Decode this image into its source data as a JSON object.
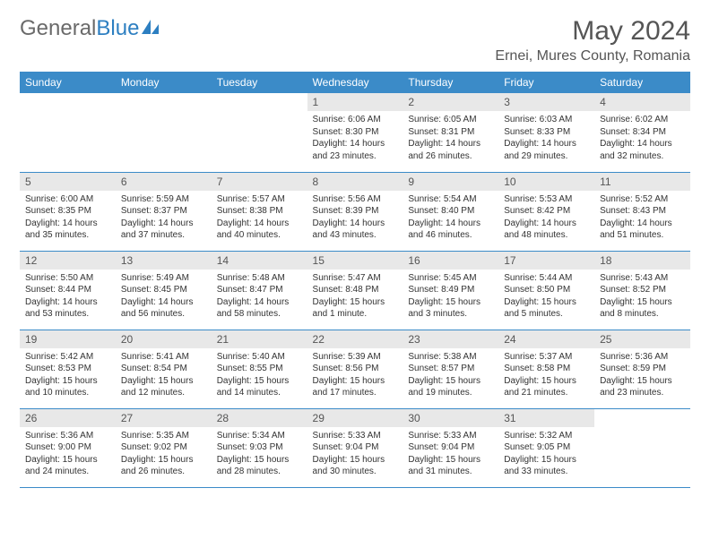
{
  "logo": {
    "text_gray": "General",
    "text_blue": "Blue"
  },
  "title": "May 2024",
  "location": "Ernei, Mures County, Romania",
  "headers": [
    "Sunday",
    "Monday",
    "Tuesday",
    "Wednesday",
    "Thursday",
    "Friday",
    "Saturday"
  ],
  "colors": {
    "header_bg": "#3b8bc8",
    "daynum_bg": "#e8e8e8",
    "logo_gray": "#6a6a6a",
    "logo_blue": "#2d7fc1"
  },
  "weeks": [
    [
      {
        "n": "",
        "sr": "",
        "ss": "",
        "d1": "",
        "d2": ""
      },
      {
        "n": "",
        "sr": "",
        "ss": "",
        "d1": "",
        "d2": ""
      },
      {
        "n": "",
        "sr": "",
        "ss": "",
        "d1": "",
        "d2": ""
      },
      {
        "n": "1",
        "sr": "Sunrise: 6:06 AM",
        "ss": "Sunset: 8:30 PM",
        "d1": "Daylight: 14 hours",
        "d2": "and 23 minutes."
      },
      {
        "n": "2",
        "sr": "Sunrise: 6:05 AM",
        "ss": "Sunset: 8:31 PM",
        "d1": "Daylight: 14 hours",
        "d2": "and 26 minutes."
      },
      {
        "n": "3",
        "sr": "Sunrise: 6:03 AM",
        "ss": "Sunset: 8:33 PM",
        "d1": "Daylight: 14 hours",
        "d2": "and 29 minutes."
      },
      {
        "n": "4",
        "sr": "Sunrise: 6:02 AM",
        "ss": "Sunset: 8:34 PM",
        "d1": "Daylight: 14 hours",
        "d2": "and 32 minutes."
      }
    ],
    [
      {
        "n": "5",
        "sr": "Sunrise: 6:00 AM",
        "ss": "Sunset: 8:35 PM",
        "d1": "Daylight: 14 hours",
        "d2": "and 35 minutes."
      },
      {
        "n": "6",
        "sr": "Sunrise: 5:59 AM",
        "ss": "Sunset: 8:37 PM",
        "d1": "Daylight: 14 hours",
        "d2": "and 37 minutes."
      },
      {
        "n": "7",
        "sr": "Sunrise: 5:57 AM",
        "ss": "Sunset: 8:38 PM",
        "d1": "Daylight: 14 hours",
        "d2": "and 40 minutes."
      },
      {
        "n": "8",
        "sr": "Sunrise: 5:56 AM",
        "ss": "Sunset: 8:39 PM",
        "d1": "Daylight: 14 hours",
        "d2": "and 43 minutes."
      },
      {
        "n": "9",
        "sr": "Sunrise: 5:54 AM",
        "ss": "Sunset: 8:40 PM",
        "d1": "Daylight: 14 hours",
        "d2": "and 46 minutes."
      },
      {
        "n": "10",
        "sr": "Sunrise: 5:53 AM",
        "ss": "Sunset: 8:42 PM",
        "d1": "Daylight: 14 hours",
        "d2": "and 48 minutes."
      },
      {
        "n": "11",
        "sr": "Sunrise: 5:52 AM",
        "ss": "Sunset: 8:43 PM",
        "d1": "Daylight: 14 hours",
        "d2": "and 51 minutes."
      }
    ],
    [
      {
        "n": "12",
        "sr": "Sunrise: 5:50 AM",
        "ss": "Sunset: 8:44 PM",
        "d1": "Daylight: 14 hours",
        "d2": "and 53 minutes."
      },
      {
        "n": "13",
        "sr": "Sunrise: 5:49 AM",
        "ss": "Sunset: 8:45 PM",
        "d1": "Daylight: 14 hours",
        "d2": "and 56 minutes."
      },
      {
        "n": "14",
        "sr": "Sunrise: 5:48 AM",
        "ss": "Sunset: 8:47 PM",
        "d1": "Daylight: 14 hours",
        "d2": "and 58 minutes."
      },
      {
        "n": "15",
        "sr": "Sunrise: 5:47 AM",
        "ss": "Sunset: 8:48 PM",
        "d1": "Daylight: 15 hours",
        "d2": "and 1 minute."
      },
      {
        "n": "16",
        "sr": "Sunrise: 5:45 AM",
        "ss": "Sunset: 8:49 PM",
        "d1": "Daylight: 15 hours",
        "d2": "and 3 minutes."
      },
      {
        "n": "17",
        "sr": "Sunrise: 5:44 AM",
        "ss": "Sunset: 8:50 PM",
        "d1": "Daylight: 15 hours",
        "d2": "and 5 minutes."
      },
      {
        "n": "18",
        "sr": "Sunrise: 5:43 AM",
        "ss": "Sunset: 8:52 PM",
        "d1": "Daylight: 15 hours",
        "d2": "and 8 minutes."
      }
    ],
    [
      {
        "n": "19",
        "sr": "Sunrise: 5:42 AM",
        "ss": "Sunset: 8:53 PM",
        "d1": "Daylight: 15 hours",
        "d2": "and 10 minutes."
      },
      {
        "n": "20",
        "sr": "Sunrise: 5:41 AM",
        "ss": "Sunset: 8:54 PM",
        "d1": "Daylight: 15 hours",
        "d2": "and 12 minutes."
      },
      {
        "n": "21",
        "sr": "Sunrise: 5:40 AM",
        "ss": "Sunset: 8:55 PM",
        "d1": "Daylight: 15 hours",
        "d2": "and 14 minutes."
      },
      {
        "n": "22",
        "sr": "Sunrise: 5:39 AM",
        "ss": "Sunset: 8:56 PM",
        "d1": "Daylight: 15 hours",
        "d2": "and 17 minutes."
      },
      {
        "n": "23",
        "sr": "Sunrise: 5:38 AM",
        "ss": "Sunset: 8:57 PM",
        "d1": "Daylight: 15 hours",
        "d2": "and 19 minutes."
      },
      {
        "n": "24",
        "sr": "Sunrise: 5:37 AM",
        "ss": "Sunset: 8:58 PM",
        "d1": "Daylight: 15 hours",
        "d2": "and 21 minutes."
      },
      {
        "n": "25",
        "sr": "Sunrise: 5:36 AM",
        "ss": "Sunset: 8:59 PM",
        "d1": "Daylight: 15 hours",
        "d2": "and 23 minutes."
      }
    ],
    [
      {
        "n": "26",
        "sr": "Sunrise: 5:36 AM",
        "ss": "Sunset: 9:00 PM",
        "d1": "Daylight: 15 hours",
        "d2": "and 24 minutes."
      },
      {
        "n": "27",
        "sr": "Sunrise: 5:35 AM",
        "ss": "Sunset: 9:02 PM",
        "d1": "Daylight: 15 hours",
        "d2": "and 26 minutes."
      },
      {
        "n": "28",
        "sr": "Sunrise: 5:34 AM",
        "ss": "Sunset: 9:03 PM",
        "d1": "Daylight: 15 hours",
        "d2": "and 28 minutes."
      },
      {
        "n": "29",
        "sr": "Sunrise: 5:33 AM",
        "ss": "Sunset: 9:04 PM",
        "d1": "Daylight: 15 hours",
        "d2": "and 30 minutes."
      },
      {
        "n": "30",
        "sr": "Sunrise: 5:33 AM",
        "ss": "Sunset: 9:04 PM",
        "d1": "Daylight: 15 hours",
        "d2": "and 31 minutes."
      },
      {
        "n": "31",
        "sr": "Sunrise: 5:32 AM",
        "ss": "Sunset: 9:05 PM",
        "d1": "Daylight: 15 hours",
        "d2": "and 33 minutes."
      },
      {
        "n": "",
        "sr": "",
        "ss": "",
        "d1": "",
        "d2": ""
      }
    ]
  ]
}
